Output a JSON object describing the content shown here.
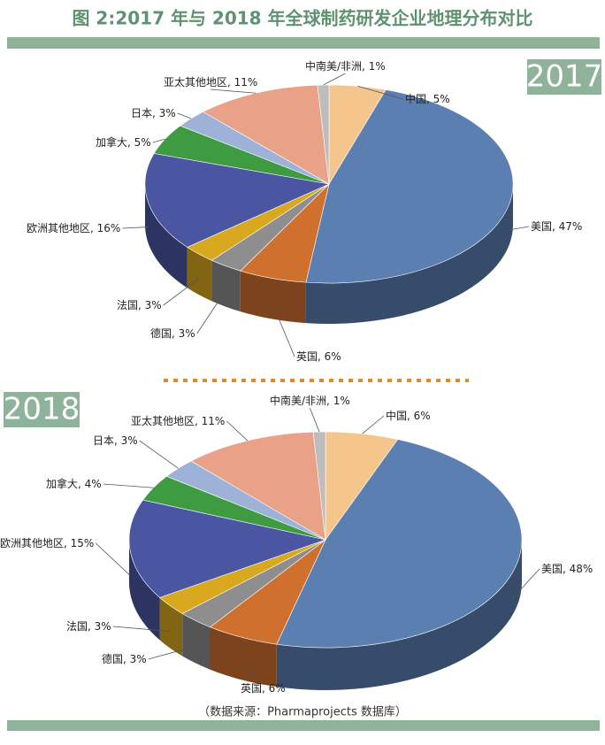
{
  "header": {
    "title": "图 2:2017 年与 2018 年全球制药研发企业地理分布对比"
  },
  "footer": {
    "source": "（数据来源：Pharmaprojects 数据库）"
  },
  "chart_data": [
    {
      "type": "pie",
      "title": "2017",
      "categories": [
        "中国",
        "美国",
        "英国",
        "德国",
        "法国",
        "欧洲其他地区",
        "加拿大",
        "日本",
        "亚太其他地区",
        "中南美/非洲"
      ],
      "values": [
        5,
        47,
        6,
        3,
        3,
        16,
        5,
        3,
        11,
        1
      ],
      "value_labels": [
        "5%",
        "47%",
        "6%",
        "3%",
        "3%",
        "16%",
        "5%",
        "3%",
        "11%",
        "1%"
      ],
      "label_separator": ", ",
      "colors": [
        "#f4c68c",
        "#5b7fb0",
        "#d0702e",
        "#8e8e8e",
        "#d8a91f",
        "#4a56a2",
        "#3f9b42",
        "#9eb2d8",
        "#e9a188",
        "#bdbdbd"
      ]
    },
    {
      "type": "pie",
      "title": "2018",
      "categories": [
        "中国",
        "美国",
        "英国",
        "德国",
        "法国",
        "欧洲其他地区",
        "加拿大",
        "日本",
        "亚太其他地区",
        "中南美/非洲"
      ],
      "values": [
        6,
        48,
        6,
        3,
        3,
        15,
        4,
        3,
        11,
        1
      ],
      "value_labels": [
        "6%",
        "48%",
        "6%",
        "3%",
        "3%",
        "15%",
        "4%",
        "3%",
        "11%",
        "1%"
      ],
      "label_separator": ", ",
      "colors": [
        "#f4c68c",
        "#5b7fb0",
        "#d0702e",
        "#8e8e8e",
        "#d8a91f",
        "#4a56a2",
        "#3f9b42",
        "#9eb2d8",
        "#e9a188",
        "#bdbdbd"
      ]
    }
  ]
}
